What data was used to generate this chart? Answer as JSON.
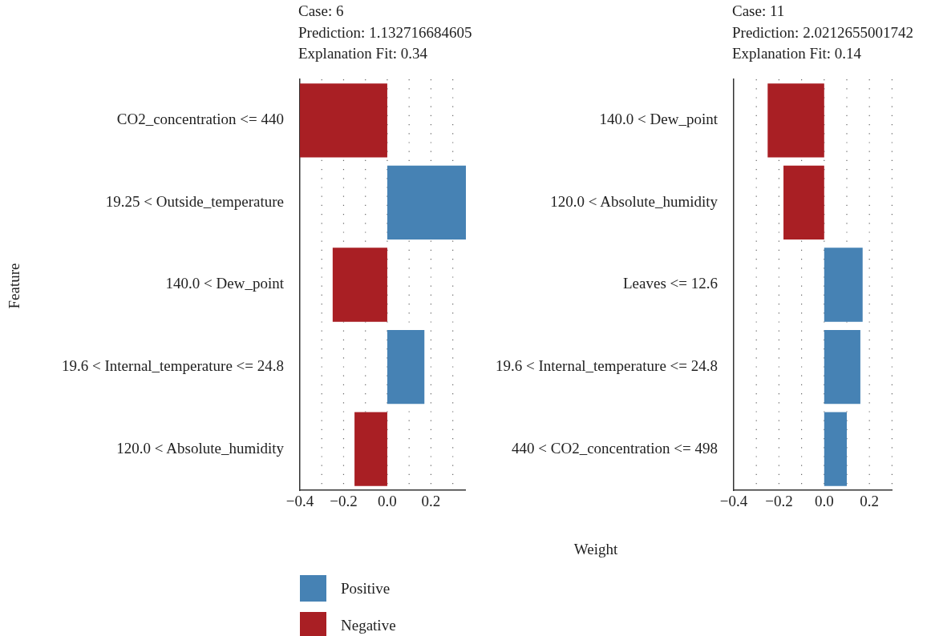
{
  "chart_data": [
    {
      "type": "bar",
      "orientation": "horizontal",
      "stacked": true,
      "title": "Case: 6\nPrediction: 1.132716684605\nExplanation Fit: 0.34",
      "ylabel": "Feature",
      "legend": "bottom",
      "grid": "x",
      "categories": [
        "CO2_concentration <= 440",
        "19.25 < Outside_temperature",
        "140.0 < Dew_point",
        "19.6 < Internal_temperature <= 24.8",
        "120.0 < Absolute_humidity"
      ],
      "series": [
        {
          "name": "Positive",
          "color": "#4682b4",
          "values": [
            null,
            0.36,
            null,
            0.17,
            null
          ]
        },
        {
          "name": "Negative",
          "color": "#a91f24",
          "values": [
            -0.4,
            null,
            -0.25,
            null,
            -0.15
          ]
        }
      ],
      "xlim": [
        -0.4,
        0.36
      ],
      "xticks": [
        {
          "value": -0.4,
          "label": "−0.4"
        },
        {
          "value": -0.3,
          "label": null
        },
        {
          "value": -0.2,
          "label": "−0.2"
        },
        {
          "value": -0.1,
          "label": null
        },
        {
          "value": 0,
          "label": "0.0"
        },
        {
          "value": 0.1,
          "label": null
        },
        {
          "value": 0.2,
          "label": "0.2"
        },
        {
          "value": 0.3,
          "label": null
        }
      ]
    },
    {
      "type": "bar",
      "orientation": "horizontal",
      "stacked": true,
      "title": "Case: 11\nPrediction: 2.0212655001742\nExplanation Fit: 0.14",
      "xlabel": "Weight",
      "grid": "x",
      "categories": [
        "140.0 < Dew_point",
        "120.0 < Absolute_humidity",
        "Leaves <= 12.6",
        "19.6 < Internal_temperature <= 24.8",
        "440 < CO2_concentration <= 498"
      ],
      "series": [
        {
          "color": "#a91f24",
          "values": [
            -0.25,
            -0.18,
            null,
            null,
            null
          ]
        },
        {
          "color": "#4682b4",
          "values": [
            null,
            null,
            0.17,
            0.16,
            0.1
          ]
        }
      ],
      "xlim": [
        -0.4,
        0.3
      ],
      "xticks": [
        {
          "value": -0.4,
          "label": "−0.4"
        },
        {
          "value": -0.3,
          "label": null
        },
        {
          "value": -0.2,
          "label": "−0.2"
        },
        {
          "value": -0.1,
          "label": null
        },
        {
          "value": 0,
          "label": "0.0"
        },
        {
          "value": 0.1,
          "label": null
        },
        {
          "value": 0.2,
          "label": "0.2"
        },
        {
          "value": 0.3,
          "label": null
        }
      ]
    }
  ]
}
